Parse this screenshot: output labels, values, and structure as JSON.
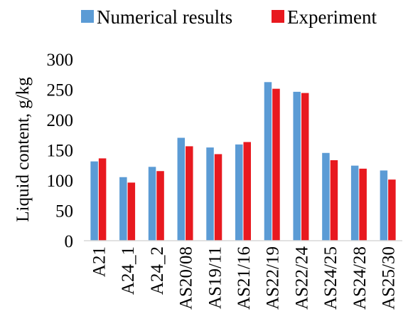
{
  "chart_data": {
    "type": "bar",
    "title": "",
    "xlabel": "",
    "ylabel": "Liquid content,  g/kg",
    "ylim": [
      0,
      300
    ],
    "yticks": [
      0,
      50,
      100,
      150,
      200,
      250,
      300
    ],
    "grid": false,
    "legend_position": "top",
    "categories": [
      "A21",
      "A24_1",
      "A24_2",
      "AS20/08",
      "AS19/11",
      "AS21/16",
      "AS22/19",
      "AS22/24",
      "AS24/25",
      "AS24/28",
      "AS25/30"
    ],
    "series": [
      {
        "name": "Numerical results",
        "color": "#5b9bd5",
        "values": [
          131,
          105,
          122,
          170,
          154,
          159,
          262,
          246,
          145,
          124,
          116
        ]
      },
      {
        "name": "Experiment",
        "color": "#e8191f",
        "values": [
          136,
          96,
          115,
          156,
          143,
          163,
          251,
          244,
          133,
          119,
          101
        ]
      }
    ]
  }
}
